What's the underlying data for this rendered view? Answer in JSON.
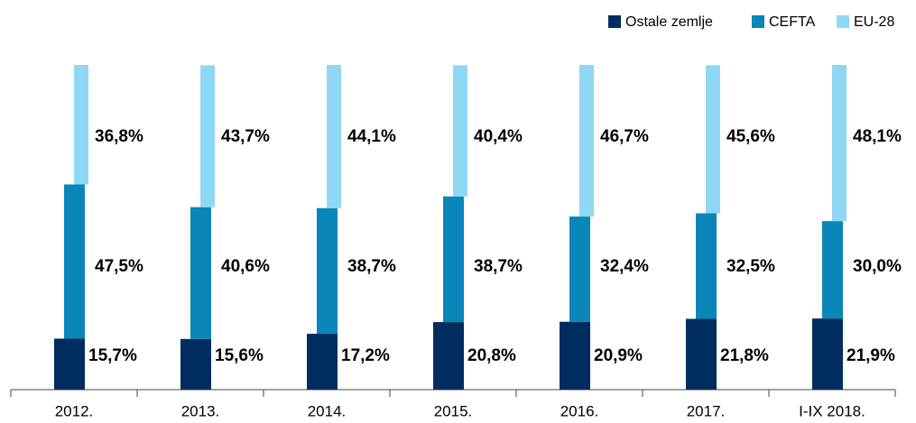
{
  "chart_data": {
    "type": "stacked_bar",
    "categories": [
      "2012.",
      "2013.",
      "2014.",
      "2015.",
      "2016.",
      "2017.",
      "I-IX 2018."
    ],
    "series": [
      {
        "name": "Ostale zemlje",
        "color": "#002d5f",
        "values": [
          15.7,
          15.6,
          17.2,
          20.8,
          20.9,
          21.8,
          21.9
        ],
        "value_labels": [
          "15,7%",
          "15,6%",
          "17,2%",
          "20,8%",
          "20,9%",
          "21,8%",
          "21,9%"
        ]
      },
      {
        "name": "CEFTA",
        "color": "#0a86b8",
        "values": [
          47.5,
          40.6,
          38.7,
          38.7,
          32.4,
          32.5,
          30.0
        ],
        "value_labels": [
          "47,5%",
          "40,6%",
          "38,7%",
          "38,7%",
          "32,4%",
          "32,5%",
          "30,0%"
        ]
      },
      {
        "name": "EU-28",
        "color": "#8fd8f5",
        "values": [
          36.8,
          43.7,
          44.1,
          40.4,
          46.7,
          45.6,
          48.1
        ],
        "value_labels": [
          "36,8%",
          "43,7%",
          "44,1%",
          "40,4%",
          "46,7%",
          "45,6%",
          "48,1%"
        ]
      }
    ],
    "legend": "top-right"
  }
}
